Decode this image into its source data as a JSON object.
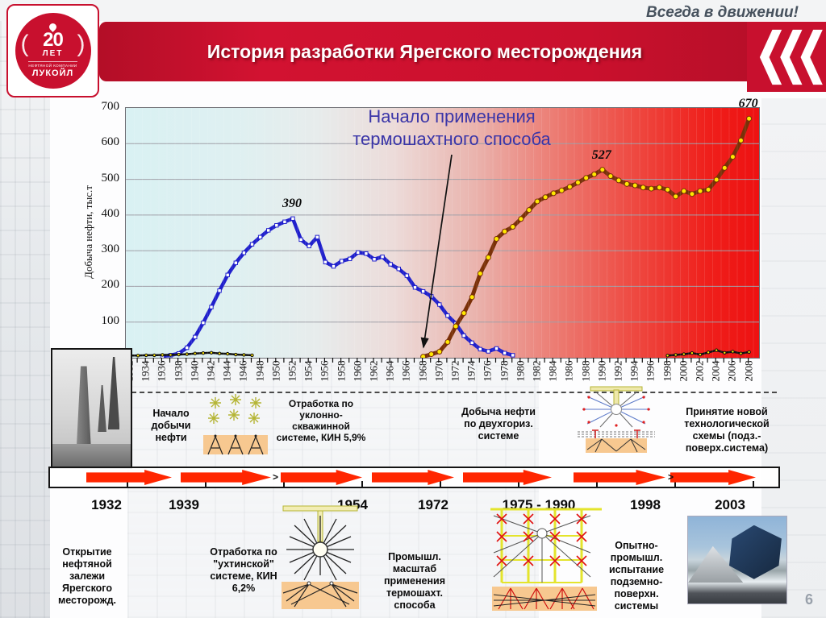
{
  "header": {
    "tagline": "Всегда в движении!",
    "title": "История разработки Ярегского месторождения",
    "logo": {
      "number": "20",
      "years_word": "ЛЕТ",
      "company_line": "НЕФТЯНОЙ КОМПАНИИ",
      "brand": "ЛУКОЙЛ",
      "paren_left": "(",
      "paren_right": ")"
    }
  },
  "page_number": "6",
  "colors": {
    "brand_red": "#c8102e",
    "timeline_arrow_red": "#ff2600",
    "chart_blue": "#2020cc",
    "chart_brown": "#7a3008",
    "marker_yellow": "#ffe800",
    "annotation_blue": "#3a35a8"
  },
  "icons": {
    "chevrons": "triple-left-chevron-icon",
    "logo_drop": "oil-drop-icon",
    "diagram1": "derrick-field-icon",
    "diagram2": "two-horizon-system-icon",
    "diagram3": "ukhtinskaya-mine-system-icon",
    "diagram4": "underground-surface-system-icon"
  },
  "chart_data": {
    "type": "line",
    "title": "",
    "xlabel": "",
    "ylabel": "Добыча нефти, тыс.т",
    "ylim": [
      0,
      700
    ],
    "ytick_step": 100,
    "x_range": [
      1932,
      2008
    ],
    "xtick_label_step": 2,
    "grid": "horizontal gray lines every 100; background gradient pale cyan (left) to red (right)",
    "legend_position": "none",
    "annotation": {
      "text": "Начало применения термошахтного способа",
      "arrow_points_to_year": 1968
    },
    "point_labels": [
      {
        "text": "390",
        "year": 1952,
        "value": 390
      },
      {
        "text": "527",
        "year": 1990,
        "value": 527
      },
      {
        "text": "670",
        "year": 2008,
        "value": 670
      }
    ],
    "series": [
      {
        "name": "blue-line",
        "color": "#2020cc",
        "width": 4.5,
        "marker": "white-square",
        "points": [
          [
            1936,
            4
          ],
          [
            1937,
            7
          ],
          [
            1938,
            12
          ],
          [
            1939,
            28
          ],
          [
            1940,
            58
          ],
          [
            1941,
            98
          ],
          [
            1942,
            142
          ],
          [
            1943,
            188
          ],
          [
            1944,
            232
          ],
          [
            1945,
            266
          ],
          [
            1946,
            294
          ],
          [
            1947,
            318
          ],
          [
            1948,
            338
          ],
          [
            1949,
            357
          ],
          [
            1950,
            371
          ],
          [
            1951,
            381
          ],
          [
            1952,
            390
          ],
          [
            1953,
            331
          ],
          [
            1954,
            313
          ],
          [
            1955,
            338
          ],
          [
            1956,
            268
          ],
          [
            1957,
            256
          ],
          [
            1958,
            271
          ],
          [
            1959,
            277
          ],
          [
            1960,
            295
          ],
          [
            1961,
            292
          ],
          [
            1962,
            276
          ],
          [
            1963,
            283
          ],
          [
            1964,
            262
          ],
          [
            1965,
            249
          ],
          [
            1966,
            230
          ],
          [
            1967,
            197
          ],
          [
            1968,
            186
          ],
          [
            1969,
            172
          ],
          [
            1970,
            149
          ],
          [
            1971,
            118
          ],
          [
            1972,
            96
          ],
          [
            1973,
            62
          ],
          [
            1974,
            42
          ],
          [
            1975,
            24
          ],
          [
            1976,
            18
          ],
          [
            1977,
            26
          ],
          [
            1978,
            13
          ],
          [
            1979,
            7
          ]
        ]
      },
      {
        "name": "brown-line",
        "color": "#7a3008",
        "width": 5,
        "marker": "yellow-circle",
        "points": [
          [
            1968,
            3
          ],
          [
            1969,
            10
          ],
          [
            1970,
            17
          ],
          [
            1971,
            44
          ],
          [
            1972,
            88
          ],
          [
            1973,
            125
          ],
          [
            1974,
            170
          ],
          [
            1975,
            236
          ],
          [
            1976,
            281
          ],
          [
            1977,
            333
          ],
          [
            1978,
            354
          ],
          [
            1979,
            367
          ],
          [
            1980,
            389
          ],
          [
            1981,
            414
          ],
          [
            1982,
            438
          ],
          [
            1983,
            450
          ],
          [
            1984,
            461
          ],
          [
            1985,
            469
          ],
          [
            1986,
            479
          ],
          [
            1987,
            491
          ],
          [
            1988,
            504
          ],
          [
            1989,
            514
          ],
          [
            1990,
            527
          ],
          [
            1991,
            509
          ],
          [
            1992,
            497
          ],
          [
            1993,
            487
          ],
          [
            1994,
            483
          ],
          [
            1995,
            477
          ],
          [
            1996,
            474
          ],
          [
            1997,
            477
          ],
          [
            1998,
            471
          ],
          [
            1999,
            452
          ],
          [
            2000,
            467
          ],
          [
            2001,
            459
          ],
          [
            2002,
            467
          ],
          [
            2003,
            471
          ],
          [
            2004,
            499
          ],
          [
            2005,
            532
          ],
          [
            2006,
            563
          ],
          [
            2007,
            609
          ],
          [
            2008,
            670
          ]
        ]
      },
      {
        "name": "black-line-early",
        "color": "#111111",
        "width": 2.5,
        "marker": "yellow-dot",
        "points": [
          [
            1932,
            6
          ],
          [
            1933,
            6
          ],
          [
            1934,
            7
          ],
          [
            1935,
            7
          ],
          [
            1936,
            8
          ],
          [
            1937,
            8
          ],
          [
            1938,
            9
          ],
          [
            1939,
            10
          ],
          [
            1940,
            12
          ],
          [
            1941,
            13
          ],
          [
            1942,
            14
          ],
          [
            1943,
            12
          ],
          [
            1944,
            11
          ],
          [
            1945,
            9
          ],
          [
            1946,
            8
          ],
          [
            1947,
            7
          ]
        ]
      },
      {
        "name": "black-line-late",
        "color": "#111111",
        "width": 2.5,
        "marker": "yellow-dot",
        "points": [
          [
            1998,
            6
          ],
          [
            1999,
            8
          ],
          [
            2000,
            10
          ],
          [
            2001,
            13
          ],
          [
            2002,
            9
          ],
          [
            2003,
            15
          ],
          [
            2004,
            21
          ],
          [
            2005,
            14
          ],
          [
            2006,
            17
          ],
          [
            2007,
            12
          ],
          [
            2008,
            16
          ]
        ]
      }
    ]
  },
  "timeline": {
    "arrow_separator": ">",
    "captions_top": [
      "Начало добычи нефти",
      "Отработка по уклонно-скважинной системе, КИН 5,9%",
      "Добыча нефти по двухгориз. системе",
      "Принятие новой технологической схемы (подз.-поверх.система)"
    ],
    "years": [
      "1932",
      "1939",
      "1954",
      "1972",
      "1975 - 1990",
      "1998",
      "2003"
    ],
    "captions_bottom": [
      "Открытие нефтяной залежи Ярегского месторожд.",
      "Отработка по \"ухтинской\" системе, КИН 6,2%",
      "Промышл. масштаб применения термошахт. способа",
      "Опытно-промышл. испытание подземно-поверхн. системы"
    ]
  }
}
